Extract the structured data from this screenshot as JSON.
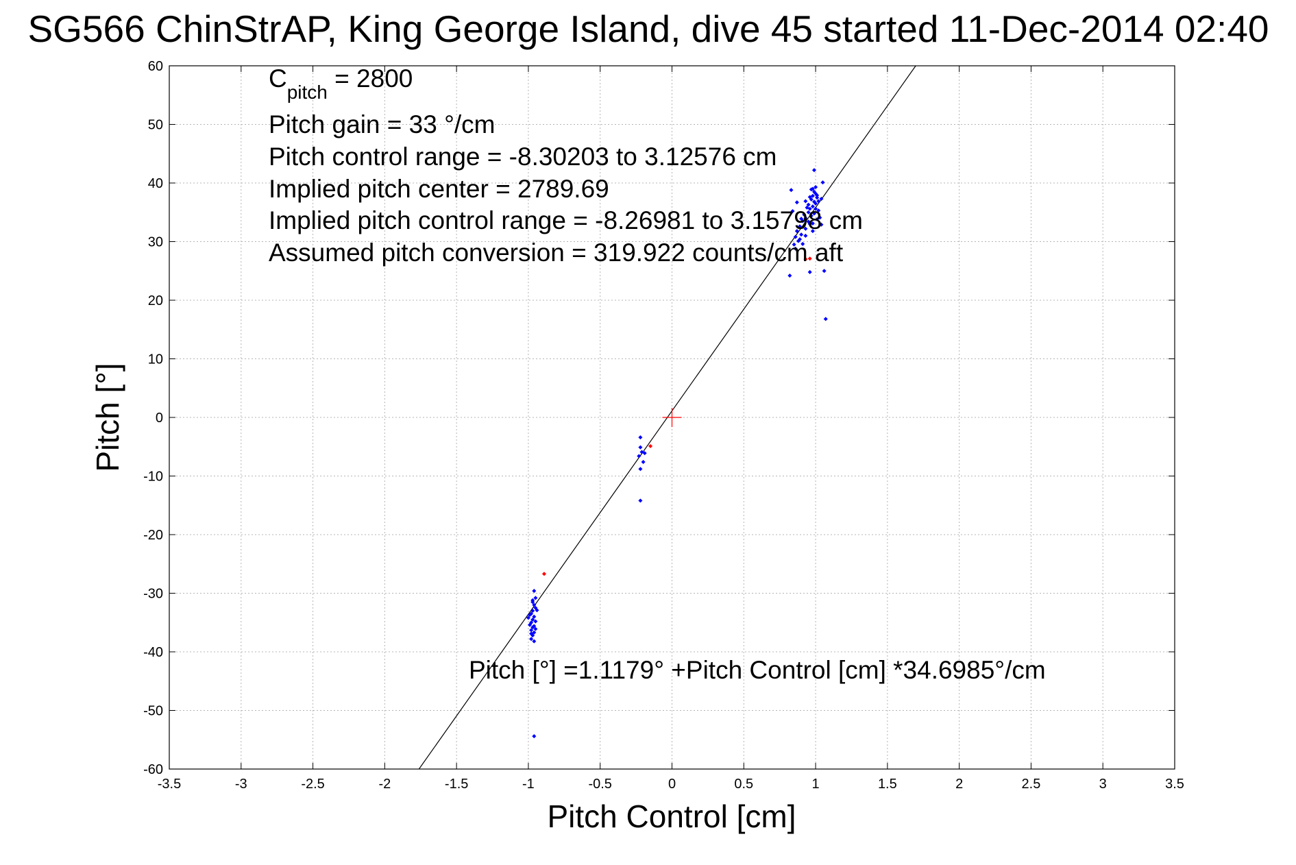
{
  "chart_data": {
    "type": "scatter",
    "title": "SG566 ChinStrAP, King George Island, dive 45 started 11-Dec-2014 02:40",
    "xlabel": "Pitch Control [cm]",
    "ylabel": "Pitch [°]",
    "xlim": [
      -3.5,
      3.5
    ],
    "ylim": [
      -60,
      60
    ],
    "xticks": [
      "-3.5",
      "-3",
      "-2.5",
      "-2",
      "-1.5",
      "-1",
      "-0.5",
      "0",
      "0.5",
      "1",
      "1.5",
      "2",
      "2.5",
      "3",
      "3.5"
    ],
    "yticks": [
      "60",
      "50",
      "40",
      "30",
      "20",
      "10",
      "0",
      "-10",
      "-20",
      "-30",
      "-40",
      "-50",
      "-60"
    ],
    "grid": true,
    "annotations": {
      "c_pitch_main": "C",
      "c_pitch_sub": "pitch",
      "c_pitch_value": " = 2800",
      "pitch_gain": "Pitch gain = 33 °/cm",
      "pitch_control_range": "Pitch control range = -8.30203 to 3.12576 cm",
      "implied_pitch_center": "Implied pitch center = 2789.69",
      "implied_control_range": "Implied pitch control range = -8.26981 to 3.15798 cm",
      "assumed_conversion": "Assumed pitch conversion = 319.922 counts/cm aft",
      "fit_equation": "Pitch [°] =1.1179° +Pitch Control [cm] *34.6985°/cm"
    },
    "fit_line": {
      "intercept": 1.1179,
      "slope": 34.6985
    },
    "center_marker": {
      "x": 0,
      "y": 0,
      "color": "#ff0000"
    },
    "series": [
      {
        "color": "#0000ff",
        "points": [
          [
            0.99,
            38.5
          ],
          [
            1.0,
            38.2
          ],
          [
            0.98,
            37.8
          ],
          [
            1.01,
            37.5
          ],
          [
            0.97,
            37.2
          ],
          [
            0.99,
            36.8
          ],
          [
            1.0,
            36.5
          ],
          [
            0.98,
            36.0
          ],
          [
            0.96,
            35.6
          ],
          [
            1.02,
            35.3
          ],
          [
            0.95,
            35.0
          ],
          [
            0.99,
            34.8
          ],
          [
            0.97,
            34.4
          ],
          [
            0.93,
            34.0
          ],
          [
            1.01,
            33.8
          ],
          [
            0.91,
            33.5
          ],
          [
            0.96,
            33.0
          ],
          [
            0.89,
            32.6
          ],
          [
            0.93,
            32.2
          ],
          [
            0.87,
            31.8
          ],
          [
            0.9,
            31.2
          ],
          [
            0.86,
            30.8
          ],
          [
            0.88,
            30.1
          ],
          [
            0.85,
            29.5
          ],
          [
            0.86,
            28.8
          ],
          [
            0.98,
            39.0
          ],
          [
            1.0,
            39.3
          ],
          [
            0.97,
            38.9
          ],
          [
            1.01,
            37.9
          ],
          [
            0.95,
            36.3
          ],
          [
            0.94,
            35.8
          ],
          [
            0.92,
            34.6
          ],
          [
            0.9,
            33.9
          ],
          [
            0.95,
            33.4
          ],
          [
            0.98,
            33.1
          ],
          [
            1.02,
            36.9
          ],
          [
            1.03,
            34.1
          ],
          [
            1.04,
            32.9
          ],
          [
            0.84,
            35.2
          ],
          [
            0.87,
            36.7
          ],
          [
            0.83,
            38.8
          ],
          [
            0.93,
            36.9
          ],
          [
            0.96,
            37.6
          ],
          [
            1.0,
            35.6
          ],
          [
            1.04,
            37.3
          ],
          [
            1.05,
            40.1
          ],
          [
            0.99,
            42.2
          ],
          [
            0.82,
            24.2
          ],
          [
            0.96,
            24.8
          ],
          [
            1.06,
            25.0
          ],
          [
            1.07,
            16.8
          ],
          [
            0.98,
            31.8
          ],
          [
            0.93,
            31.0
          ],
          [
            0.91,
            29.6
          ],
          [
            0.89,
            30.4
          ],
          [
            -0.22,
            -3.4
          ],
          [
            -0.22,
            -5.1
          ],
          [
            -0.21,
            -5.9
          ],
          [
            -0.23,
            -6.6
          ],
          [
            -0.2,
            -7.6
          ],
          [
            -0.22,
            -8.8
          ],
          [
            -0.22,
            -14.2
          ],
          [
            -0.19,
            -6.1
          ],
          [
            -0.96,
            -29.6
          ],
          [
            -0.95,
            -30.8
          ],
          [
            -0.97,
            -31.5
          ],
          [
            -0.96,
            -32.0
          ],
          [
            -0.95,
            -32.5
          ],
          [
            -0.97,
            -33.0
          ],
          [
            -0.98,
            -33.5
          ],
          [
            -0.96,
            -34.0
          ],
          [
            -0.97,
            -34.5
          ],
          [
            -0.98,
            -35.0
          ],
          [
            -0.99,
            -35.4
          ],
          [
            -0.97,
            -35.8
          ],
          [
            -0.98,
            -36.3
          ],
          [
            -0.96,
            -36.7
          ],
          [
            -0.97,
            -37.2
          ],
          [
            -0.98,
            -37.8
          ],
          [
            -0.96,
            -38.2
          ],
          [
            -1.0,
            -34.2
          ],
          [
            -0.95,
            -34.8
          ],
          [
            -0.94,
            -32.9
          ],
          [
            -0.99,
            -33.7
          ],
          [
            -0.96,
            -35.6
          ],
          [
            -0.95,
            -36.1
          ],
          [
            -0.97,
            -31.2
          ],
          [
            -0.98,
            -36.9
          ],
          [
            -0.96,
            -54.4
          ]
        ]
      },
      {
        "color": "#ff0000",
        "points": [
          [
            0.93,
            27.0
          ],
          [
            0.96,
            27.1
          ],
          [
            -0.15,
            -4.9
          ],
          [
            -0.89,
            -26.7
          ]
        ]
      }
    ]
  }
}
